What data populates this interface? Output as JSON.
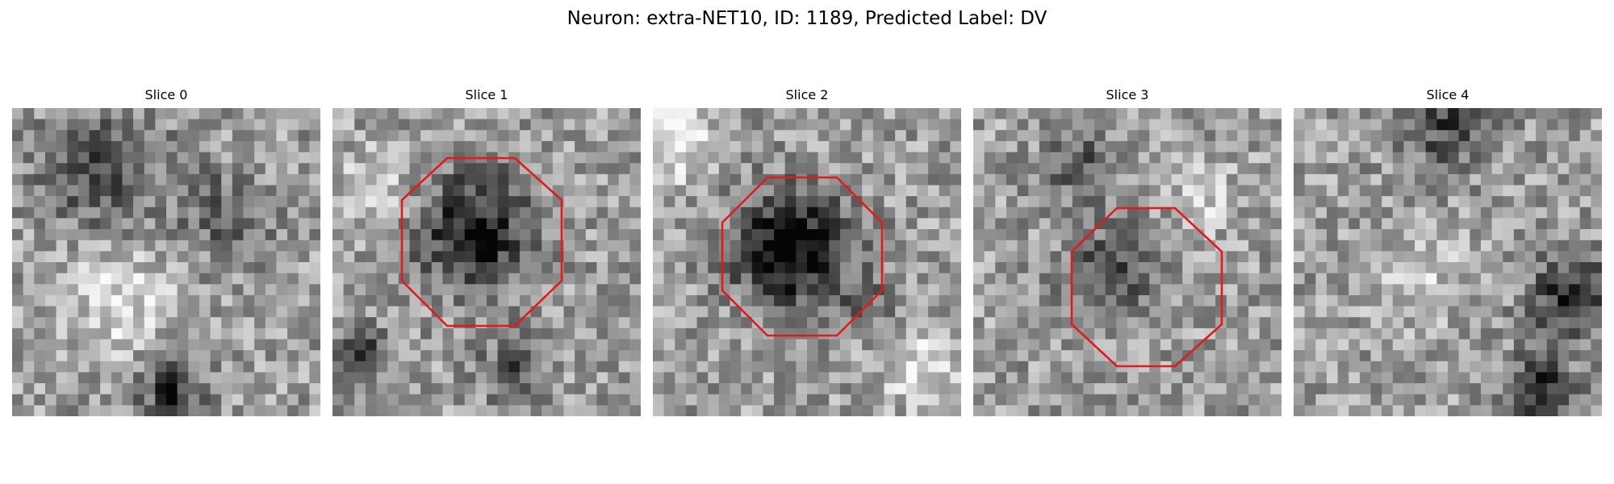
{
  "figure": {
    "title": "Neuron: extra-NET10, ID: 1189, Predicted Label: DV"
  },
  "panels": [
    {
      "title": "Slice 0",
      "has_outline": false
    },
    {
      "title": "Slice 1",
      "has_outline": true
    },
    {
      "title": "Slice 2",
      "has_outline": true
    },
    {
      "title": "Slice 3",
      "has_outline": true
    },
    {
      "title": "Slice 4",
      "has_outline": false
    }
  ],
  "style": {
    "outline_color": "#e31a1c",
    "colormap": "gray"
  }
}
